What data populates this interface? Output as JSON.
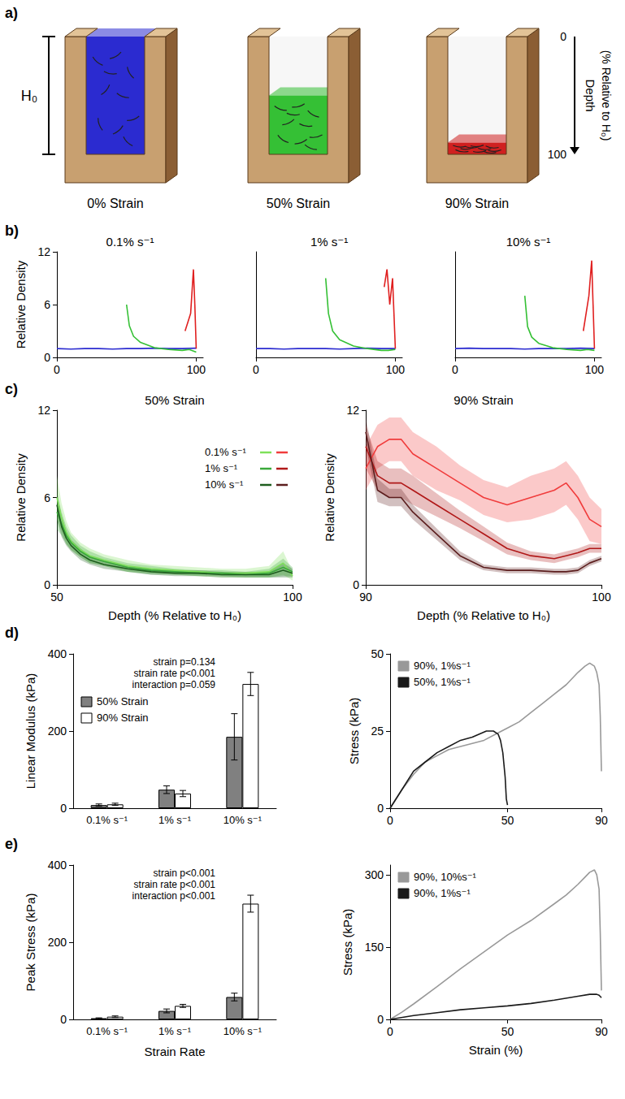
{
  "diagram": {
    "panel_label": "a)",
    "h_label": "H₀",
    "depth_title": "Depth",
    "depth_subtitle": "(% Relative to H₀)",
    "depth_ticks": [
      0,
      100
    ],
    "boxes": [
      {
        "label": "0% Strain",
        "strain": 0,
        "color": "#2b2bd0"
      },
      {
        "label": "50% Strain",
        "strain": 50,
        "color": "#35c035"
      },
      {
        "label": "90% Strain",
        "strain": 90,
        "color": "#d02020"
      }
    ]
  },
  "chart_data": [
    {
      "panel_label": "b)",
      "type": "line",
      "title": "0.1% s⁻¹",
      "y_label": "Relative Density",
      "xlim": [
        0,
        105
      ],
      "xticks": [
        0,
        100
      ],
      "ylim": [
        0,
        12
      ],
      "yticks": [
        0,
        6,
        12
      ],
      "series": [
        {
          "name": "0% Strain",
          "color": "#2b2bd0",
          "x": [
            0,
            10,
            20,
            30,
            40,
            50,
            60,
            70,
            80,
            90,
            100
          ],
          "values": [
            1.0,
            0.95,
            1.0,
            1.0,
            0.95,
            1.0,
            1.0,
            1.05,
            1.0,
            1.0,
            1.05
          ]
        },
        {
          "name": "50% Strain",
          "color": "#35c035",
          "x": [
            50,
            52,
            55,
            60,
            70,
            80,
            90,
            95,
            100
          ],
          "values": [
            6.0,
            3.6,
            2.4,
            1.7,
            1.1,
            0.9,
            0.8,
            0.9,
            0.6
          ]
        },
        {
          "name": "90% Strain",
          "color": "#e02020",
          "x": [
            92,
            94,
            96,
            98,
            99,
            100
          ],
          "values": [
            3,
            4,
            5,
            10,
            6,
            1
          ]
        }
      ]
    },
    {
      "type": "line",
      "title": "1% s⁻¹",
      "xlim": [
        0,
        105
      ],
      "xticks": [
        0,
        100
      ],
      "ylim": [
        0,
        12
      ],
      "tick_labels": "x",
      "series": [
        {
          "name": "0% Strain",
          "color": "#2b2bd0",
          "x": [
            0,
            10,
            20,
            30,
            40,
            50,
            60,
            70,
            80,
            90,
            100
          ],
          "values": [
            1.0,
            1.0,
            0.95,
            1.0,
            1.0,
            1.0,
            0.95,
            1.0,
            1.05,
            1.0,
            1.0
          ]
        },
        {
          "name": "50% Strain",
          "color": "#35c035",
          "x": [
            50,
            52,
            55,
            60,
            70,
            80,
            90,
            95,
            100
          ],
          "values": [
            9.0,
            5.0,
            3.0,
            2.0,
            1.3,
            1.0,
            0.8,
            0.8,
            0.9
          ]
        },
        {
          "name": "90% Strain",
          "color": "#e02020",
          "x": [
            92,
            94,
            96,
            98,
            99,
            100
          ],
          "values": [
            8,
            10,
            6,
            9,
            5,
            1
          ]
        }
      ]
    },
    {
      "type": "line",
      "title": "10% s⁻¹",
      "xlim": [
        0,
        105
      ],
      "xticks": [
        0,
        100
      ],
      "ylim": [
        0,
        12
      ],
      "tick_labels": "x",
      "series": [
        {
          "name": "0% Strain",
          "color": "#2b2bd0",
          "x": [
            0,
            10,
            20,
            30,
            40,
            50,
            60,
            70,
            80,
            90,
            100
          ],
          "values": [
            1.0,
            1.05,
            1.0,
            1.0,
            1.0,
            0.95,
            1.0,
            1.0,
            1.0,
            1.05,
            1.0
          ]
        },
        {
          "name": "50% Strain",
          "color": "#35c035",
          "x": [
            50,
            52,
            55,
            60,
            70,
            80,
            90,
            95,
            100
          ],
          "values": [
            7.0,
            3.5,
            2.3,
            1.6,
            1.1,
            0.9,
            0.8,
            0.9,
            0.8
          ]
        },
        {
          "name": "90% Strain",
          "color": "#e02020",
          "x": [
            92,
            94,
            96,
            98,
            99,
            100
          ],
          "values": [
            3,
            5,
            7,
            11,
            6,
            1
          ]
        }
      ]
    },
    {
      "panel_label": "c)",
      "type": "line",
      "title": "50% Strain",
      "x_label": "Depth (% Relative to H₀)",
      "y_label": "Relative Density",
      "xlim": [
        50,
        100
      ],
      "xticks": [
        50,
        100
      ],
      "ylim": [
        0,
        12
      ],
      "yticks": [
        0,
        6,
        12
      ],
      "legend": "upper right",
      "series": [
        {
          "name": "0.1% s⁻¹",
          "color": "#7ee05a",
          "x": [
            50,
            51,
            52,
            53,
            55,
            57,
            60,
            65,
            70,
            75,
            80,
            85,
            90,
            95,
            98,
            100
          ],
          "values": [
            6.0,
            4.6,
            3.6,
            3.0,
            2.4,
            2.0,
            1.7,
            1.3,
            1.1,
            1.0,
            0.9,
            0.8,
            0.8,
            0.9,
            1.5,
            0.6
          ],
          "error": [
            1.5,
            1.0,
            0.8,
            0.6,
            0.5,
            0.5,
            0.4,
            0.4,
            0.3,
            0.3,
            0.3,
            0.3,
            0.3,
            0.4,
            0.8,
            0.3
          ]
        },
        {
          "name": "1% s⁻¹",
          "color": "#3aa83a",
          "x": [
            50,
            51,
            52,
            53,
            55,
            57,
            60,
            65,
            70,
            75,
            80,
            85,
            90,
            95,
            98,
            100
          ],
          "values": [
            5.0,
            4.2,
            3.4,
            2.9,
            2.3,
            1.9,
            1.6,
            1.2,
            1.0,
            0.9,
            0.8,
            0.8,
            0.7,
            0.8,
            1.2,
            0.9
          ],
          "error": [
            1.2,
            0.8,
            0.6,
            0.5,
            0.4,
            0.4,
            0.3,
            0.3,
            0.3,
            0.2,
            0.2,
            0.2,
            0.2,
            0.3,
            0.6,
            0.3
          ]
        },
        {
          "name": "10% s⁻¹",
          "color": "#1e5e1e",
          "x": [
            50,
            51,
            52,
            53,
            55,
            57,
            60,
            65,
            70,
            75,
            80,
            85,
            90,
            95,
            98,
            100
          ],
          "values": [
            5.5,
            4.0,
            3.2,
            2.7,
            2.1,
            1.7,
            1.4,
            1.1,
            0.9,
            0.8,
            0.8,
            0.7,
            0.7,
            0.7,
            1.0,
            0.8
          ],
          "error": [
            1.0,
            0.7,
            0.5,
            0.4,
            0.4,
            0.3,
            0.3,
            0.2,
            0.2,
            0.2,
            0.2,
            0.2,
            0.2,
            0.2,
            0.5,
            0.3
          ]
        }
      ]
    },
    {
      "type": "line",
      "title": "90% Strain",
      "x_label": "Depth (% Relative to H₀)",
      "y_label": "Relative Density",
      "xlim": [
        90,
        100
      ],
      "xticks": [
        90,
        100
      ],
      "ylim": [
        0,
        12
      ],
      "yticks": [
        0,
        12
      ],
      "series": [
        {
          "name": "0.1% s⁻¹",
          "color": "#f03c3c",
          "x": [
            90,
            90.5,
            91,
            91.5,
            92,
            93,
            94,
            95,
            96,
            97,
            98,
            98.5,
            99,
            99.5,
            100
          ],
          "values": [
            8.0,
            9.5,
            10.0,
            10.0,
            9.0,
            8.0,
            7.0,
            6.0,
            5.5,
            6.0,
            6.5,
            7.0,
            6.0,
            4.5,
            4.0
          ],
          "error": [
            1.5,
            1.5,
            1.5,
            1.5,
            1.5,
            1.5,
            1.2,
            1.2,
            1.2,
            1.5,
            1.5,
            1.5,
            1.5,
            1.5,
            1.2
          ]
        },
        {
          "name": "1% s⁻¹",
          "color": "#b01818",
          "x": [
            90,
            90.5,
            91,
            91.5,
            92,
            93,
            94,
            95,
            96,
            97,
            98,
            98.5,
            99,
            99.5,
            100
          ],
          "values": [
            9.5,
            7.5,
            7.0,
            7.0,
            6.5,
            5.5,
            4.5,
            3.5,
            2.5,
            2.0,
            1.8,
            2.0,
            2.2,
            2.5,
            2.5
          ],
          "error": [
            1.5,
            1.0,
            1.0,
            1.0,
            1.0,
            0.8,
            0.6,
            0.5,
            0.4,
            0.3,
            0.3,
            0.3,
            0.3,
            0.3,
            0.3
          ]
        },
        {
          "name": "10% s⁻¹",
          "color": "#5c1e1e",
          "x": [
            90,
            90.5,
            91,
            91.5,
            92,
            93,
            94,
            95,
            96,
            97,
            98,
            98.5,
            99,
            99.5,
            100
          ],
          "values": [
            10.5,
            6.5,
            6.0,
            6.0,
            5.0,
            3.5,
            2.0,
            1.2,
            1.0,
            1.0,
            0.9,
            0.9,
            1.0,
            1.5,
            1.8
          ],
          "error": [
            1.0,
            0.8,
            0.6,
            0.6,
            0.5,
            0.4,
            0.3,
            0.2,
            0.2,
            0.2,
            0.2,
            0.2,
            0.2,
            0.2,
            0.2
          ]
        }
      ]
    },
    {
      "panel_label": "d)",
      "type": "bar",
      "y_label": "Linear Modulus (kPa)",
      "categories": [
        "0.1% s⁻¹",
        "1% s⁻¹",
        "10% s⁻¹"
      ],
      "ylim": [
        0,
        400
      ],
      "yticks": [
        0,
        200,
        400
      ],
      "legend": "upper left",
      "annotations": [
        "strain p=0.134",
        "strain rate p<0.001",
        "interaction p=0.059"
      ],
      "series": [
        {
          "name": "50% Strain",
          "color": "#808080",
          "values": [
            8,
            48,
            185
          ],
          "error": [
            3,
            10,
            60
          ]
        },
        {
          "name": "90% Strain",
          "color": "#ffffff",
          "values": [
            10,
            38,
            322
          ],
          "error": [
            3,
            8,
            30
          ]
        }
      ]
    },
    {
      "type": "line",
      "y_label": "Stress (kPa)",
      "xlim": [
        0,
        90
      ],
      "xticks": [
        0,
        50,
        90
      ],
      "ylim": [
        0,
        50
      ],
      "yticks": [
        0,
        25,
        50
      ],
      "legend": "upper left",
      "series": [
        {
          "name": "90%, 1%s⁻¹",
          "color": "#999999",
          "x": [
            0,
            5,
            10,
            15,
            20,
            25,
            30,
            35,
            40,
            45,
            50,
            55,
            60,
            65,
            70,
            75,
            80,
            83,
            85,
            87,
            88,
            89,
            89.5,
            90
          ],
          "values": [
            0,
            6,
            11,
            15,
            17,
            19,
            20,
            21,
            22,
            24,
            26,
            28,
            31,
            34,
            37,
            40,
            44,
            46,
            47,
            46,
            44,
            40,
            30,
            12
          ]
        },
        {
          "name": "50%, 1%s⁻¹",
          "color": "#1a1a1a",
          "x": [
            0,
            5,
            10,
            15,
            20,
            25,
            30,
            35,
            38,
            41,
            44,
            46,
            47,
            48,
            49,
            49.5,
            50
          ],
          "values": [
            0,
            6,
            12,
            15,
            18,
            20,
            22,
            23,
            24,
            25,
            25,
            24,
            22,
            18,
            10,
            3,
            1
          ]
        }
      ]
    },
    {
      "panel_label": "e)",
      "type": "bar",
      "y_label": "Peak Stress (kPa)",
      "x_label": "Strain Rate",
      "categories": [
        "0.1% s⁻¹",
        "1% s⁻¹",
        "10% s⁻¹"
      ],
      "ylim": [
        0,
        400
      ],
      "yticks": [
        0,
        200,
        400
      ],
      "annotations": [
        "strain p<0.001",
        "strain rate p<0.001",
        "interaction p<0.001"
      ],
      "series": [
        {
          "name": "50% Strain",
          "color": "#808080",
          "values": [
            3,
            22,
            58
          ],
          "error": [
            1,
            5,
            10
          ]
        },
        {
          "name": "90% Strain",
          "color": "#ffffff",
          "values": [
            7,
            35,
            300
          ],
          "error": [
            2,
            4,
            22
          ]
        }
      ]
    },
    {
      "type": "line",
      "y_label": "Stress (kPa)",
      "x_label": "Strain (%)",
      "xlim": [
        0,
        90
      ],
      "xticks": [
        0,
        50,
        90
      ],
      "ylim": [
        0,
        320
      ],
      "yticks": [
        0,
        150,
        300
      ],
      "legend": "upper left",
      "series": [
        {
          "name": "90%, 10%s⁻¹",
          "color": "#999999",
          "x": [
            0,
            5,
            10,
            20,
            30,
            40,
            50,
            60,
            70,
            75,
            80,
            83,
            85,
            87,
            88,
            89,
            89.5,
            90
          ],
          "values": [
            0,
            15,
            32,
            68,
            105,
            140,
            175,
            205,
            240,
            258,
            280,
            295,
            305,
            310,
            300,
            270,
            180,
            60
          ]
        },
        {
          "name": "90%, 1%s⁻¹",
          "color": "#1a1a1a",
          "x": [
            0,
            10,
            20,
            30,
            40,
            50,
            60,
            70,
            80,
            85,
            88,
            89,
            90
          ],
          "values": [
            0,
            8,
            14,
            20,
            24,
            28,
            33,
            40,
            48,
            52,
            52,
            50,
            45
          ]
        }
      ]
    }
  ]
}
